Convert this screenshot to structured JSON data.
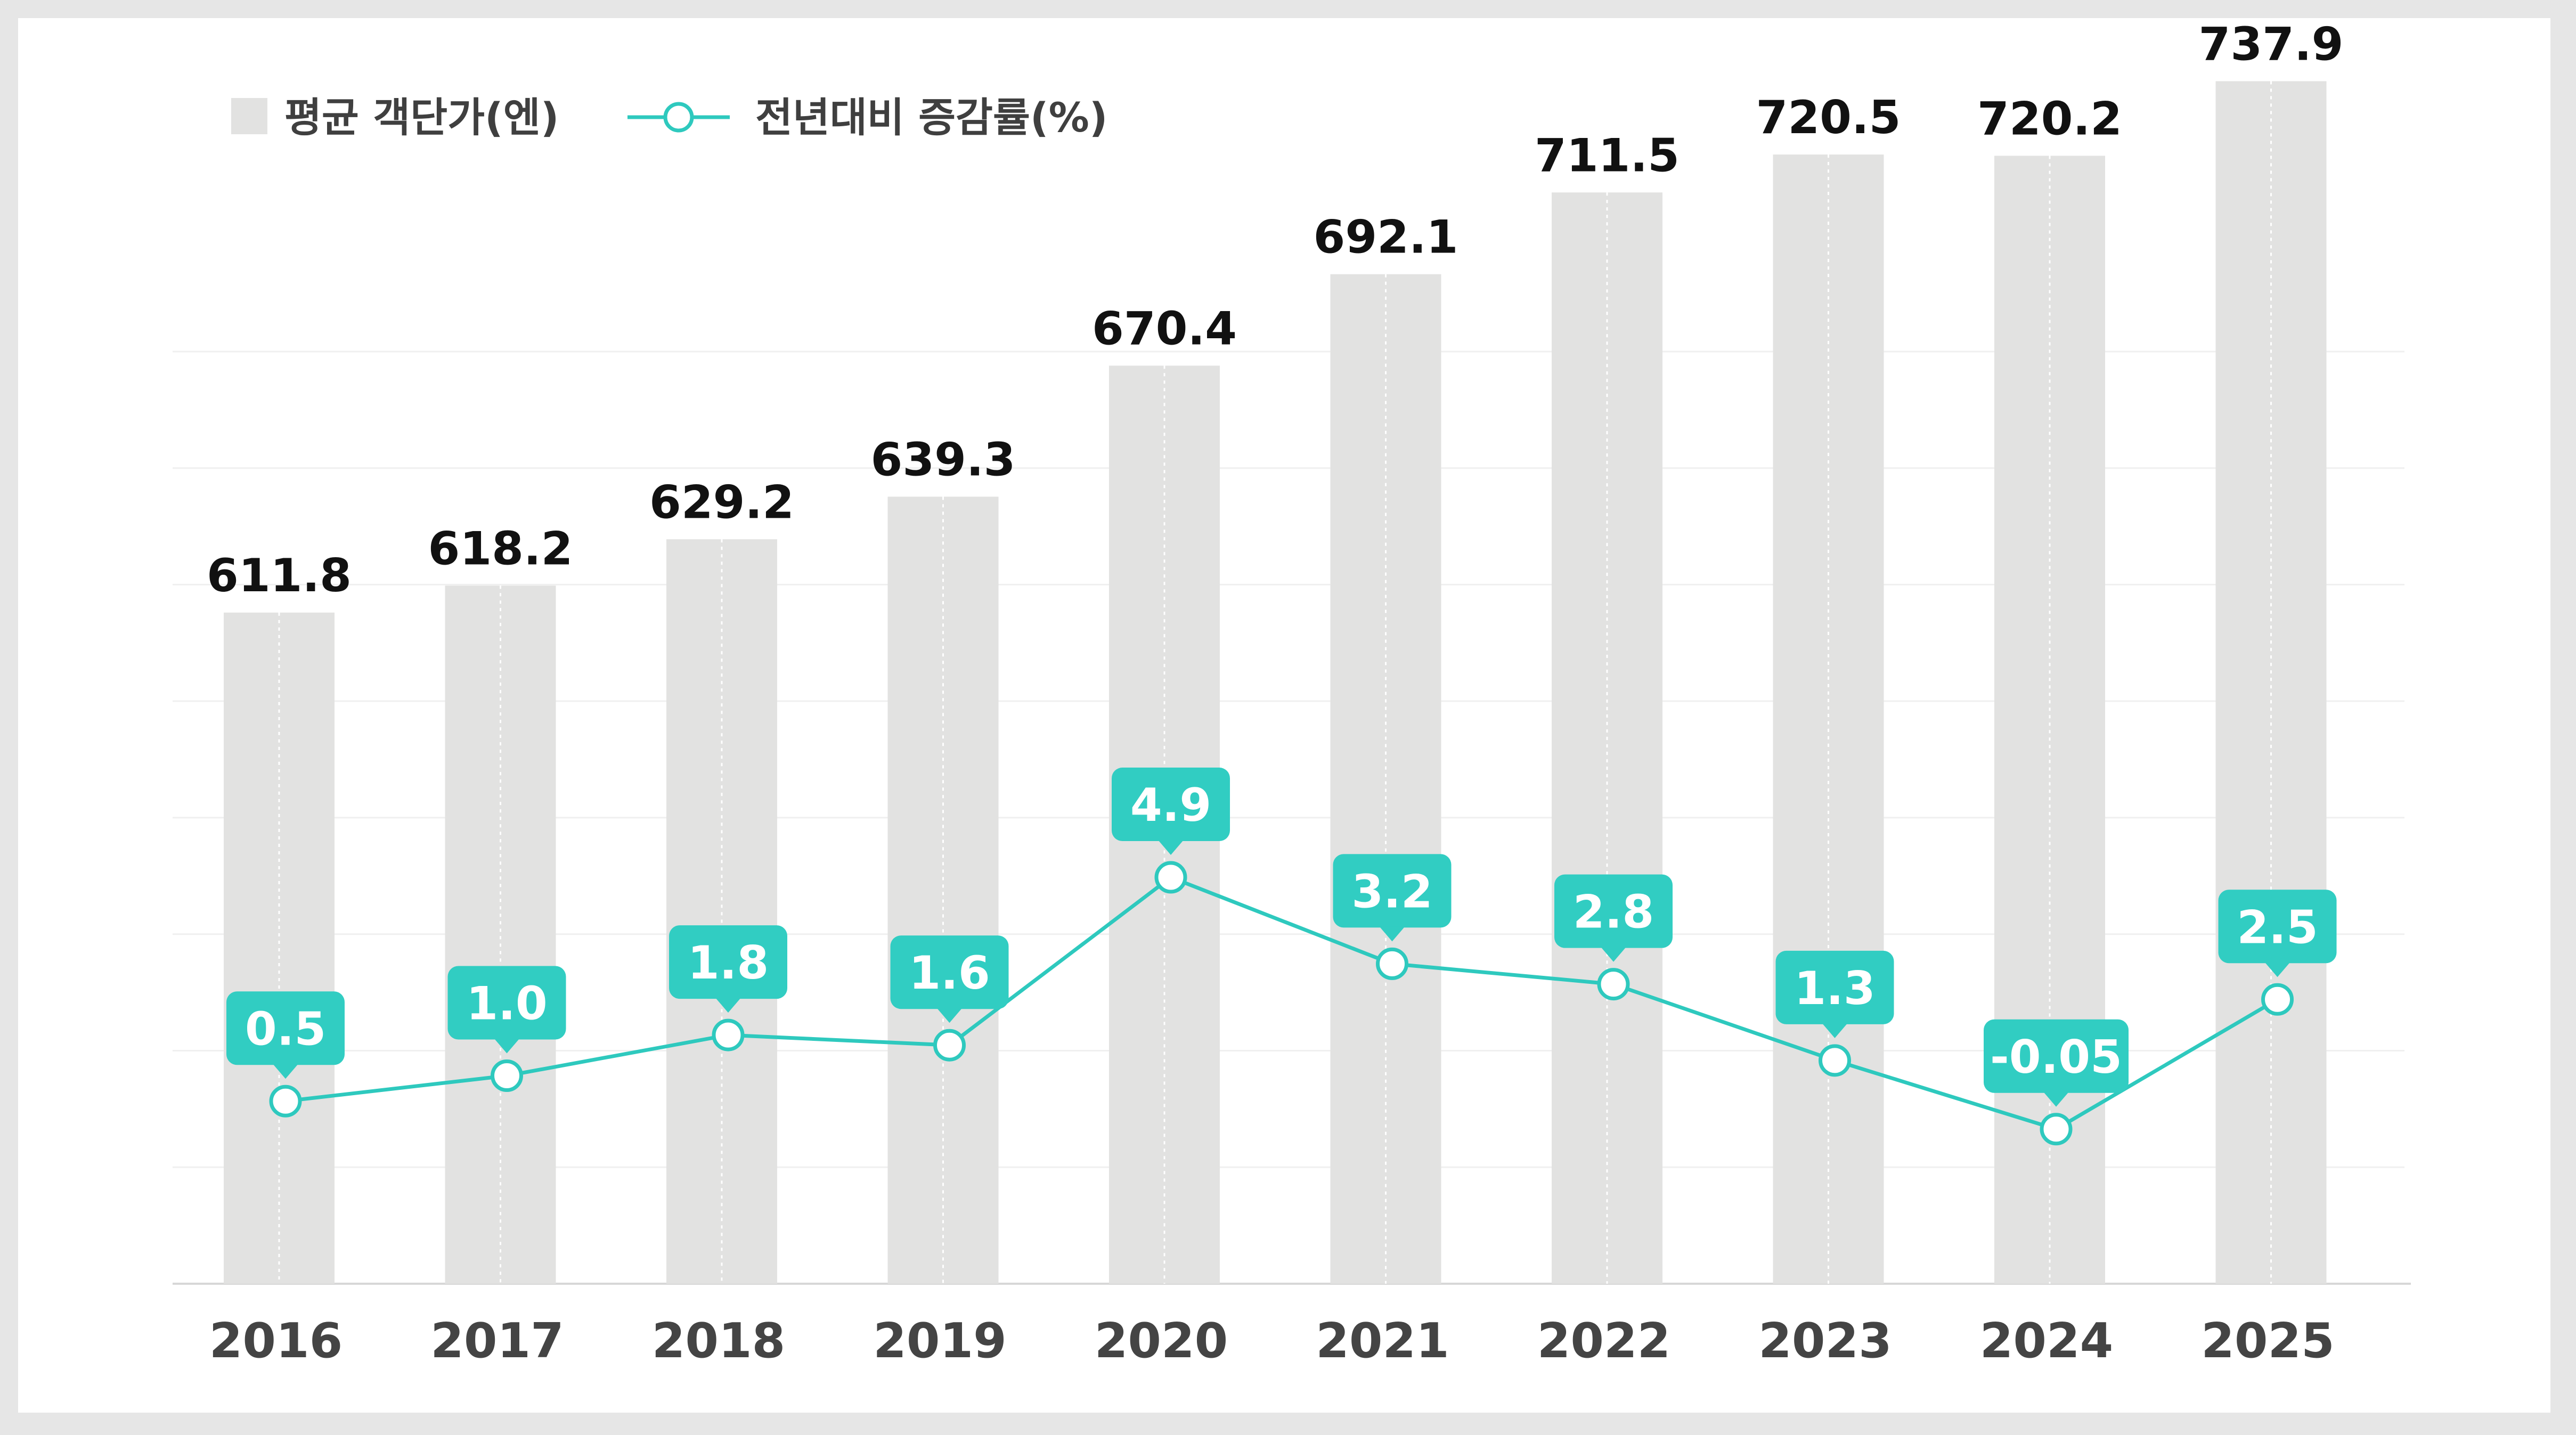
{
  "legend": {
    "bar_label": "평균 객단가(엔)",
    "line_label": "전년대비 증감률(%)"
  },
  "colors": {
    "bar": "#e2e2e1",
    "line": "#2ec9be",
    "callout": "#31cdc2",
    "grid": "#f0f0f0"
  },
  "chart_data": {
    "type": "bar+line",
    "categories": [
      "2016",
      "2017",
      "2018",
      "2019",
      "2020",
      "2021",
      "2022",
      "2023",
      "2024",
      "2025"
    ],
    "series": [
      {
        "name": "평균 객단가(엔)",
        "type": "bar",
        "values": [
          611.8,
          618.2,
          629.2,
          639.3,
          670.4,
          692.1,
          711.5,
          720.5,
          720.2,
          737.9
        ],
        "labels": [
          "611.8",
          "618.2",
          "629.2",
          "639.3",
          "670.4",
          "692.1",
          "711.5",
          "720.5",
          "720.2",
          "737.9"
        ]
      },
      {
        "name": "전년대비 증감률(%)",
        "type": "line",
        "values": [
          0.5,
          1.0,
          1.8,
          1.6,
          4.9,
          3.2,
          2.8,
          1.3,
          -0.05,
          2.5
        ],
        "labels": [
          "0.5",
          "1.0",
          "1.8",
          "1.6",
          "4.9",
          "3.2",
          "2.8",
          "1.3",
          "-0.05",
          "2.5"
        ]
      }
    ],
    "legend_position": "top-left",
    "grid": true,
    "y_axis_visible": false
  }
}
